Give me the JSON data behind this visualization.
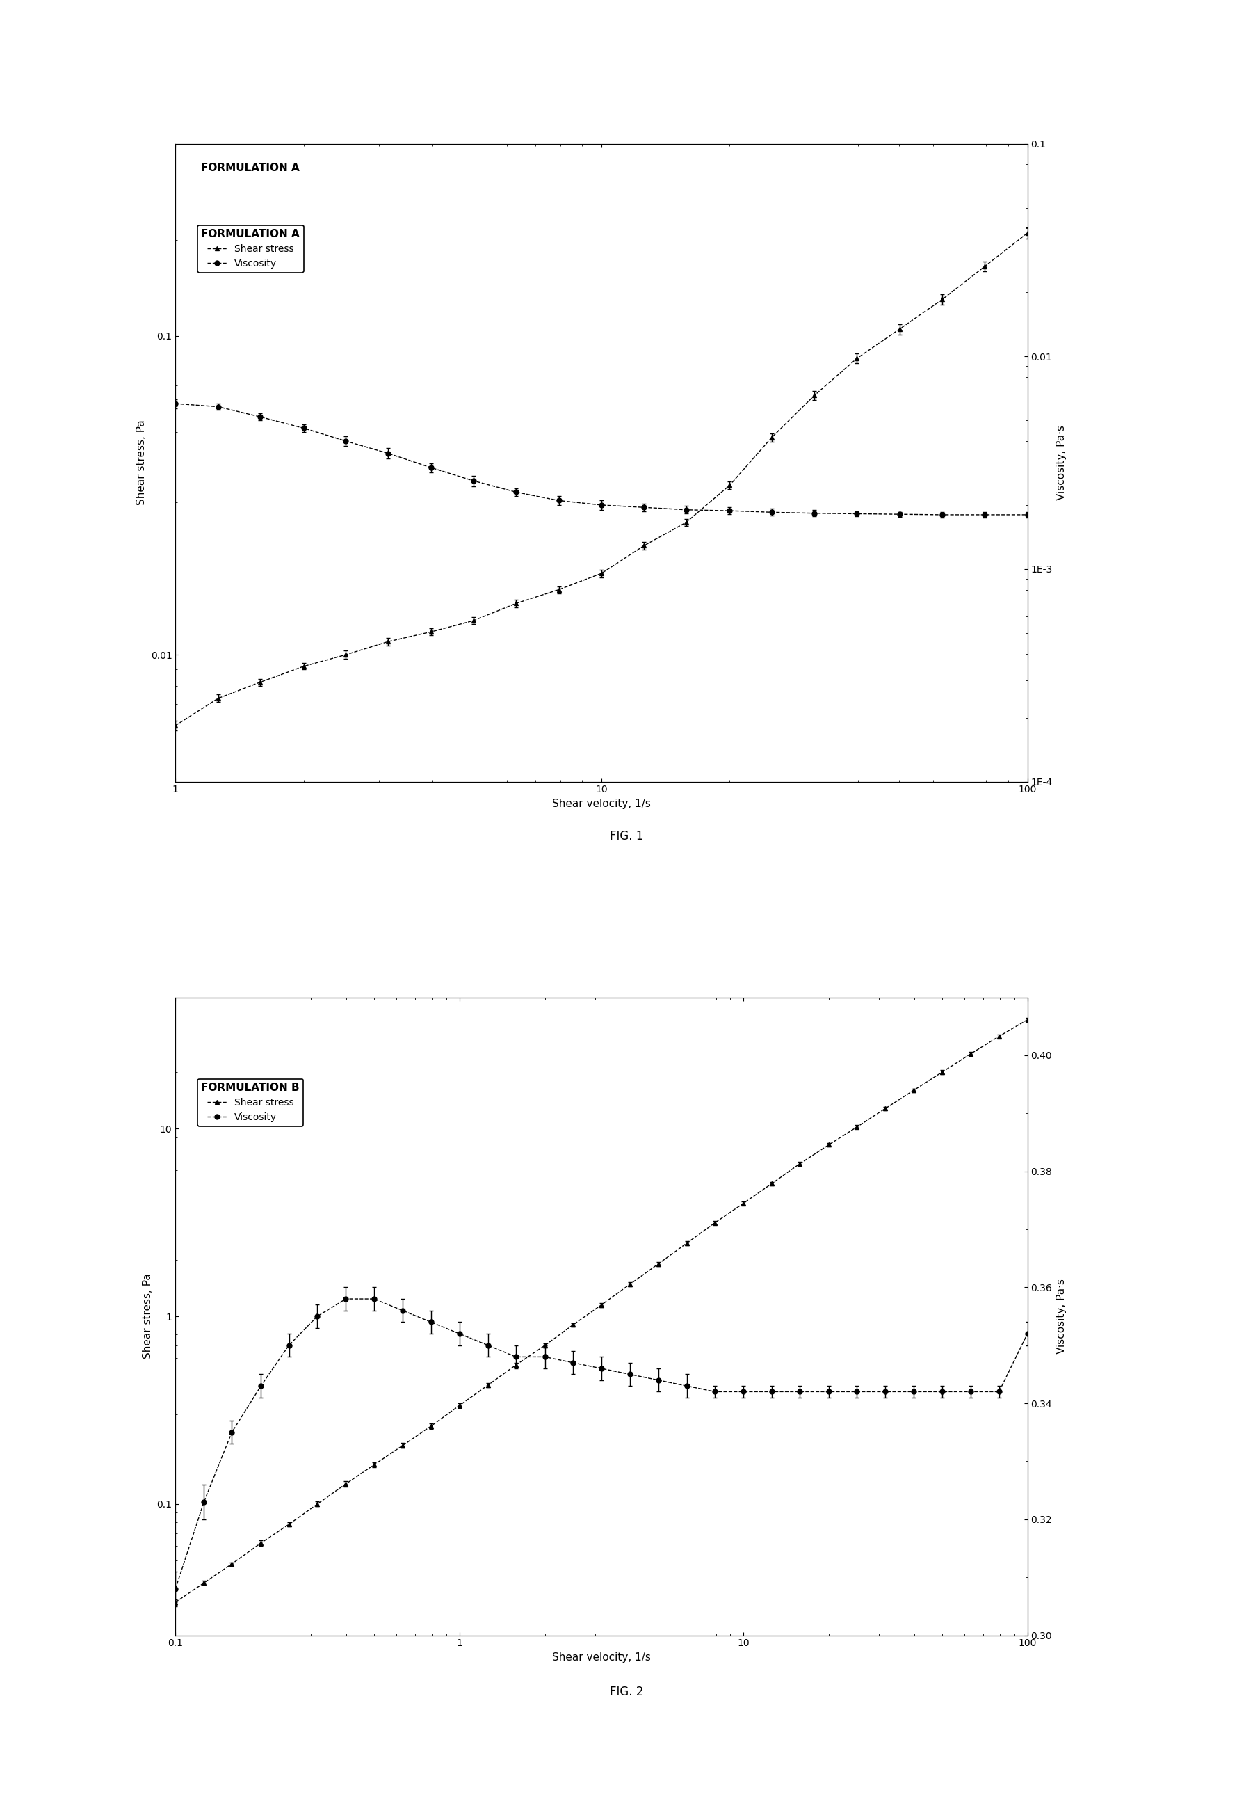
{
  "fig1": {
    "title": "FORMULATION A",
    "xlabel": "Shear velocity, 1/s",
    "ylabel_left": "Shear stress, Pa",
    "ylabel_right": "Viscosity, Pa·s",
    "xlim": [
      1,
      100
    ],
    "ylim_left": [
      0.004,
      0.4
    ],
    "ylim_right": [
      0.0001,
      0.1
    ],
    "shear_stress_x": [
      1.0,
      1.26,
      1.58,
      2.0,
      2.51,
      3.16,
      3.98,
      5.01,
      6.31,
      7.94,
      10.0,
      12.6,
      15.8,
      20.0,
      25.1,
      31.6,
      39.8,
      50.1,
      63.1,
      79.4,
      100.0
    ],
    "shear_stress_y": [
      0.006,
      0.0073,
      0.0082,
      0.0092,
      0.01,
      0.011,
      0.0118,
      0.0128,
      0.0145,
      0.016,
      0.018,
      0.022,
      0.026,
      0.034,
      0.048,
      0.065,
      0.085,
      0.105,
      0.13,
      0.165,
      0.21
    ],
    "viscosity_x": [
      1.0,
      1.26,
      1.58,
      2.0,
      2.51,
      3.16,
      3.98,
      5.01,
      6.31,
      7.94,
      10.0,
      12.6,
      15.8,
      20.0,
      25.1,
      31.6,
      39.8,
      50.1,
      63.1,
      79.4,
      100.0
    ],
    "viscosity_y": [
      0.006,
      0.0058,
      0.0052,
      0.0046,
      0.004,
      0.0035,
      0.003,
      0.0026,
      0.0023,
      0.0021,
      0.002,
      0.00195,
      0.0019,
      0.00188,
      0.00185,
      0.00183,
      0.00182,
      0.00181,
      0.0018,
      0.0018,
      0.0018
    ],
    "shear_stress_yerr": [
      0.0002,
      0.0002,
      0.0002,
      0.0002,
      0.0003,
      0.0003,
      0.0003,
      0.0003,
      0.0004,
      0.0004,
      0.0005,
      0.0006,
      0.0007,
      0.001,
      0.0015,
      0.002,
      0.003,
      0.004,
      0.005,
      0.006,
      0.008
    ],
    "viscosity_yerr": [
      0.0003,
      0.0002,
      0.0002,
      0.0002,
      0.0002,
      0.0002,
      0.00015,
      0.00015,
      0.0001,
      0.0001,
      0.0001,
      8e-05,
      8e-05,
      7e-05,
      7e-05,
      6e-05,
      5e-05,
      5e-05,
      5e-05,
      5e-05,
      5e-05
    ],
    "fig_label": "FIG. 1"
  },
  "fig2": {
    "title": "FORMULATION B",
    "xlabel": "Shear velocity, 1/s",
    "ylabel_left": "Shear stress, Pa",
    "ylabel_right": "Viscosity, Pa·s",
    "xlim": [
      0.1,
      100
    ],
    "ylim_left": [
      0.02,
      50
    ],
    "ylim_right": [
      0.3,
      0.41
    ],
    "shear_stress_x": [
      0.1,
      0.126,
      0.158,
      0.2,
      0.251,
      0.316,
      0.398,
      0.501,
      0.631,
      0.794,
      1.0,
      1.26,
      1.58,
      2.0,
      2.51,
      3.16,
      3.98,
      5.01,
      6.31,
      7.94,
      10.0,
      12.6,
      15.8,
      20.0,
      25.1,
      31.6,
      39.8,
      50.1,
      63.1,
      79.4,
      100.0
    ],
    "shear_stress_y": [
      0.03,
      0.038,
      0.048,
      0.062,
      0.078,
      0.1,
      0.128,
      0.162,
      0.205,
      0.26,
      0.335,
      0.43,
      0.55,
      0.7,
      0.9,
      1.15,
      1.48,
      1.9,
      2.45,
      3.15,
      4.0,
      5.1,
      6.5,
      8.2,
      10.2,
      12.8,
      16.0,
      20.0,
      25.0,
      31.0,
      38.0
    ],
    "viscosity_x": [
      0.1,
      0.126,
      0.158,
      0.2,
      0.251,
      0.316,
      0.398,
      0.501,
      0.631,
      0.794,
      1.0,
      1.26,
      1.58,
      2.0,
      2.51,
      3.16,
      3.98,
      5.01,
      6.31,
      7.94,
      10.0,
      12.6,
      15.8,
      20.0,
      25.1,
      31.6,
      39.8,
      50.1,
      63.1,
      79.4,
      100.0
    ],
    "viscosity_y": [
      0.308,
      0.323,
      0.335,
      0.343,
      0.35,
      0.355,
      0.358,
      0.358,
      0.356,
      0.354,
      0.352,
      0.35,
      0.348,
      0.348,
      0.347,
      0.346,
      0.345,
      0.344,
      0.343,
      0.342,
      0.342,
      0.342,
      0.342,
      0.342,
      0.342,
      0.342,
      0.342,
      0.342,
      0.342,
      0.342,
      0.352
    ],
    "shear_stress_yerr": [
      0.001,
      0.001,
      0.001,
      0.002,
      0.002,
      0.003,
      0.004,
      0.005,
      0.006,
      0.008,
      0.01,
      0.012,
      0.015,
      0.018,
      0.022,
      0.028,
      0.035,
      0.045,
      0.055,
      0.07,
      0.09,
      0.11,
      0.14,
      0.17,
      0.22,
      0.28,
      0.35,
      0.44,
      0.55,
      0.68,
      0.84
    ],
    "viscosity_yerr": [
      0.003,
      0.003,
      0.002,
      0.002,
      0.002,
      0.002,
      0.002,
      0.002,
      0.002,
      0.002,
      0.002,
      0.002,
      0.002,
      0.002,
      0.002,
      0.002,
      0.002,
      0.002,
      0.002,
      0.001,
      0.001,
      0.001,
      0.001,
      0.001,
      0.001,
      0.001,
      0.001,
      0.001,
      0.001,
      0.001,
      0.002
    ],
    "fig_label": "FIG. 2"
  },
  "line_color": "#000000",
  "marker_triangle": "^",
  "marker_circle": "o",
  "markersize": 5,
  "linewidth": 1.0
}
